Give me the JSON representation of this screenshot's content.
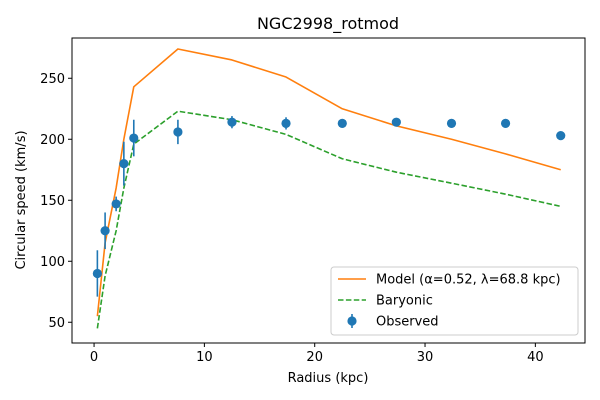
{
  "chart_data": {
    "type": "line",
    "title": "NGC2998_rotmod",
    "xlabel": "Radius (kpc)",
    "ylabel": "Circular speed (km/s)",
    "xlim": [
      -2,
      44.5
    ],
    "ylim": [
      33,
      283
    ],
    "xticks": [
      0,
      10,
      20,
      30,
      40
    ],
    "yticks": [
      50,
      100,
      150,
      200,
      250
    ],
    "grid": false,
    "legend_position": "lower right",
    "series": [
      {
        "name": "Model (α=0.52, λ=68.8 kpc)",
        "kind": "line",
        "color": "#ff7f0e",
        "dash": "solid",
        "x": [
          0.3,
          1.0,
          2.0,
          2.7,
          3.6,
          7.6,
          12.5,
          17.4,
          22.5,
          27.4,
          32.4,
          37.3,
          42.3
        ],
        "y": [
          55,
          115,
          160,
          200,
          243,
          274,
          265,
          251,
          225,
          211,
          200,
          188,
          175
        ]
      },
      {
        "name": "Baryonic",
        "kind": "line",
        "color": "#2ca02c",
        "dash": "dashed",
        "x": [
          0.3,
          1.0,
          2.0,
          2.7,
          3.6,
          7.6,
          12.5,
          17.4,
          22.5,
          27.4,
          32.4,
          37.3,
          42.3
        ],
        "y": [
          45,
          88,
          125,
          160,
          196,
          223,
          216,
          204,
          184,
          173,
          164,
          155,
          145
        ]
      },
      {
        "name": "Observed",
        "kind": "errorbar",
        "color": "#1f77b4",
        "x": [
          0.3,
          1.0,
          2.0,
          2.7,
          3.6,
          7.6,
          12.5,
          17.4,
          22.5,
          27.4,
          32.4,
          37.3,
          42.3
        ],
        "y": [
          90,
          125,
          147,
          180,
          201,
          206,
          214,
          213,
          213,
          214,
          213,
          213,
          203
        ],
        "yerr": [
          19,
          15,
          6,
          18,
          15,
          10,
          5,
          5,
          3,
          3,
          3,
          3,
          3
        ]
      }
    ]
  }
}
